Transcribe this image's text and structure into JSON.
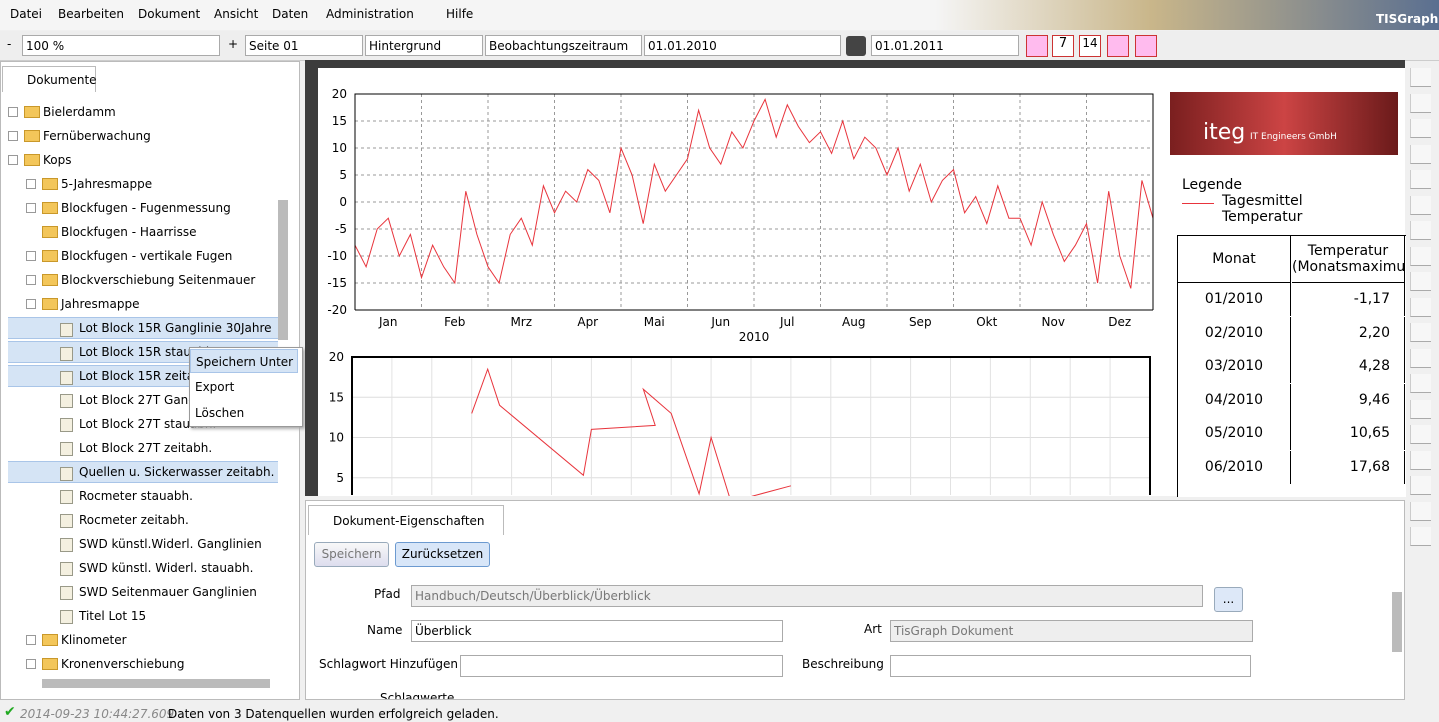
{
  "menu": [
    "Datei",
    "Bearbeiten",
    "Dokument",
    "Ansicht",
    "Daten",
    "Administration",
    "Hilfe"
  ],
  "brand": "TISGraph",
  "toolbar": {
    "minus": "-",
    "zoom": "100 %",
    "plus": "+",
    "page": "Seite 01",
    "layer": "Hintergrund",
    "range": "Beobachtungszeitraum",
    "from": "01.01.2010",
    "to": "01.01.2011",
    "cal_week": "7",
    "cal_two": "14"
  },
  "tree": {
    "tab": "Dokumente",
    "items": [
      {
        "label": "Bielerdamm",
        "folder": true,
        "open": false
      },
      {
        "label": "Fernüberwachung",
        "folder": true,
        "open": false
      },
      {
        "label": "Kops",
        "folder": true,
        "open": true,
        "children": [
          {
            "label": "5-Jahresmappe",
            "folder": true,
            "open": false
          },
          {
            "label": "Blockfugen - Fugenmessung",
            "folder": true,
            "open": false
          },
          {
            "label": "Blockfugen - Haarrisse",
            "folder": true,
            "empty": true
          },
          {
            "label": "Blockfugen - vertikale Fugen",
            "folder": true,
            "open": false
          },
          {
            "label": "Blockverschiebung Seitenmauer",
            "folder": true,
            "open": false
          },
          {
            "label": "Jahresmappe",
            "folder": true,
            "open": true,
            "children": [
              {
                "label": "Lot Block 15R Ganglinie 30Jahre",
                "selected": true
              },
              {
                "label": "Lot Block 15R stauabh.",
                "selected": true
              },
              {
                "label": "Lot Block 15R zeitabh.",
                "selected": true
              },
              {
                "label": "Lot Block 27T Ganglinie"
              },
              {
                "label": "Lot Block 27T stauabh."
              },
              {
                "label": "Lot Block 27T zeitabh."
              },
              {
                "label": "Quellen u. Sickerwasser zeitabh.",
                "selected": true
              },
              {
                "label": "Rocmeter stauabh."
              },
              {
                "label": "Rocmeter zeitabh."
              },
              {
                "label": "SWD künstl.Widerl. Ganglinien"
              },
              {
                "label": "SWD künstl. Widerl. stauabh."
              },
              {
                "label": "SWD Seitenmauer Ganglinien"
              },
              {
                "label": "Titel Lot 15"
              }
            ]
          },
          {
            "label": "Klinometer",
            "folder": true,
            "open": false
          },
          {
            "label": "Kronenverschiebung",
            "folder": true,
            "open": false
          }
        ]
      }
    ]
  },
  "context_menu": [
    "Speichern Unter",
    "Export",
    "Löschen"
  ],
  "chart_data": [
    {
      "type": "line",
      "xlabel": "2010",
      "x_labels": [
        "Jan",
        "Feb",
        "Mrz",
        "Apr",
        "Mai",
        "Jun",
        "Jul",
        "Aug",
        "Sep",
        "Okt",
        "Nov",
        "Dez"
      ],
      "series": [
        {
          "name": "Tagesmittel Temperatur",
          "color": "#e8343c",
          "values": [
            -8,
            -12,
            -5,
            -3,
            -10,
            -6,
            -14,
            -8,
            -12,
            -15,
            2,
            -6,
            -12,
            -15,
            -6,
            -3,
            -8,
            3,
            -2,
            2,
            0,
            6,
            4,
            -2,
            10,
            5,
            -4,
            7,
            2,
            5,
            8,
            17,
            10,
            7,
            13,
            10,
            15,
            19,
            12,
            18,
            14,
            11,
            13,
            9,
            15,
            8,
            12,
            10,
            5,
            10,
            2,
            7,
            0,
            4,
            6,
            -2,
            1,
            -4,
            3,
            -3,
            -3,
            -8,
            0,
            -6,
            -11,
            -8,
            -4,
            -15,
            2,
            -10,
            -16,
            4,
            -3
          ]
        }
      ],
      "ylim": [
        -20,
        20
      ],
      "yticks": [
        -20,
        -15,
        -10,
        -5,
        0,
        5,
        10,
        15,
        20
      ],
      "grid": true,
      "legend_title": "Legende"
    },
    {
      "type": "xyline",
      "series": [
        {
          "color": "#e8343c",
          "x": [
            15,
            17,
            18.5,
            29,
            30,
            38,
            36.5,
            40,
            43.5,
            45,
            47.5,
            55
          ],
          "values": [
            13,
            18.5,
            14,
            5.3,
            11,
            11.5,
            16,
            13,
            3,
            10,
            2,
            4
          ]
        }
      ],
      "xlim": [
        0,
        100
      ],
      "ylim": [
        0,
        20
      ],
      "yticks": [
        5,
        10,
        15,
        20
      ],
      "grid": true
    }
  ],
  "logo": {
    "name": "iteg",
    "sub": "IT Engineers GmbH"
  },
  "table": {
    "headers": [
      "Monat",
      "Temperatur (Monatsmaximu"
    ],
    "rows": [
      [
        "01/2010",
        "-1,17"
      ],
      [
        "02/2010",
        "2,20"
      ],
      [
        "03/2010",
        "4,28"
      ],
      [
        "04/2010",
        "9,46"
      ],
      [
        "05/2010",
        "10,65"
      ],
      [
        "06/2010",
        "17,68"
      ]
    ]
  },
  "properties": {
    "tab": "Dokument-Eigenschaften",
    "buttons": [
      "Speichern",
      "Zurücksetzen"
    ],
    "browse": "...",
    "path_label": "Pfad",
    "path": "Handbuch/Deutsch/Überblick/Überblick",
    "name_label": "Name",
    "name": "Überblick",
    "type_label": "Art",
    "type": "TisGraph Dokument",
    "keyword_label": "Schlagwort Hinzufügen",
    "desc_label": "Beschreibung",
    "keywords_label": "Schlagwerte"
  },
  "status": {
    "time": "2014-09-23 10:44:27.609",
    "message": "Daten von 3 Datenquellen wurden erfolgreich geladen."
  }
}
